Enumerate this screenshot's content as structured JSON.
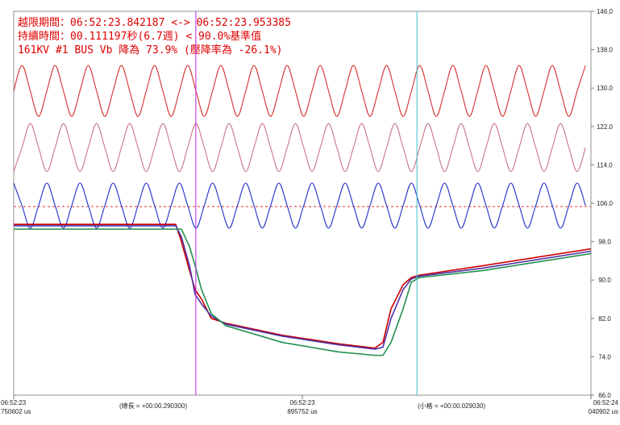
{
  "chart_data": {
    "type": "line",
    "annotations": [
      "越限期間：06:52:23.842187 <-> 06:52:23.953385",
      "持續時間：00.111197秒(6.7週) < 90.0%基準值",
      "161KV #1 BUS Vb 降為 73.9% (壓降率為 -26.1%)"
    ],
    "footer_labels": [
      "(總長 = +00:00.290300)",
      "(小格 = +00:00.029030)"
    ],
    "xlim": [
      750602,
      1040902
    ],
    "xticks": [
      {
        "value": 750602,
        "label": "06:52:23\n750602 us"
      },
      {
        "value": 895752,
        "label": "06:52:23\n895752 us"
      },
      {
        "value": 1040902,
        "label": "06:52:24\n040902 us"
      }
    ],
    "ylim": [
      66,
      146
    ],
    "yticks": [
      {
        "value": 146,
        "label": "146.0"
      },
      {
        "value": 138,
        "label": "138.0"
      },
      {
        "value": 130,
        "label": "130.0"
      },
      {
        "value": 122,
        "label": "122.0"
      },
      {
        "value": 114,
        "label": "114.0"
      },
      {
        "value": 106,
        "label": "106.0"
      },
      {
        "value": 98,
        "label": "98.0"
      },
      {
        "value": 90,
        "label": "90.0"
      },
      {
        "value": 82,
        "label": "82.0"
      },
      {
        "value": 74,
        "label": "74.0"
      },
      {
        "value": 66,
        "label": "66.0"
      }
    ],
    "cursors": [
      {
        "value": 842187,
        "color": "#c020e0"
      },
      {
        "value": 953385,
        "color": "#40c0d0"
      }
    ],
    "reference_line": {
      "value": 105.3,
      "color": "#e03030"
    },
    "x": [
      750602,
      754769,
      758936,
      763103,
      767270,
      771437,
      775604,
      779771,
      783938,
      788105,
      792272,
      796439,
      800606,
      804773,
      808940,
      813107,
      817274,
      821441,
      825608,
      829775,
      833942,
      838109,
      842276,
      846443,
      850610,
      854777,
      858944,
      863111,
      867278,
      871445,
      875612,
      879779,
      883946,
      888113,
      892280,
      896447,
      900614,
      904781,
      908948,
      913115,
      917282,
      921449,
      925616,
      929783,
      933950,
      938117,
      942284,
      946451,
      950618,
      954785,
      958952,
      963119,
      967286,
      971453,
      975620,
      979787,
      983954,
      988121,
      992288,
      996455,
      1000622,
      1004789,
      1008956,
      1013123,
      1017290,
      1021457,
      1025624,
      1029791,
      1033958,
      1038125
    ],
    "series": [
      {
        "color": "#d83030",
        "values": [
          129.4,
          134.7,
          129.4,
          124.1,
          129.4,
          134.7,
          129.4,
          124.1,
          129.4,
          134.7,
          129.4,
          124.1,
          129.4,
          134.7,
          129.4,
          124.1,
          129.4,
          134.7,
          129.4,
          124.1,
          129.4,
          134.7,
          129.4,
          124.1,
          129.4,
          134.7,
          129.4,
          124.1,
          129.4,
          134.7,
          129.4,
          124.1,
          129.4,
          134.7,
          129.4,
          124.1,
          129.4,
          134.7,
          129.4,
          124.1,
          129.4,
          134.7,
          129.4,
          124.1,
          129.4,
          134.7,
          129.4,
          124.1,
          129.4,
          134.7,
          129.4,
          124.1,
          129.4,
          134.7,
          129.4,
          124.1,
          129.4,
          134.7,
          129.4,
          124.1,
          129.4,
          134.7,
          129.4,
          124.1,
          129.4,
          134.7,
          129.4,
          124.1,
          129.4,
          134.7
        ]
      },
      {
        "color": "#c87888",
        "values": [
          112.6,
          117.6,
          122.6,
          117.6,
          112.6,
          117.6,
          122.6,
          117.6,
          112.6,
          117.6,
          122.6,
          117.6,
          112.6,
          117.6,
          122.6,
          117.6,
          112.6,
          117.6,
          122.6,
          117.6,
          112.6,
          117.6,
          122.6,
          117.6,
          112.6,
          117.6,
          122.6,
          117.6,
          112.6,
          117.6,
          122.6,
          117.6,
          112.6,
          117.6,
          122.6,
          117.6,
          112.6,
          117.6,
          122.6,
          117.6,
          112.6,
          117.6,
          122.6,
          117.6,
          112.6,
          117.6,
          122.6,
          117.6,
          112.6,
          117.6,
          122.6,
          117.6,
          112.6,
          117.6,
          122.6,
          117.6,
          112.6,
          117.6,
          122.6,
          117.6,
          112.6,
          117.6,
          122.6,
          117.6,
          112.6,
          117.6,
          122.6,
          117.6,
          112.6,
          117.6
        ]
      },
      {
        "color": "#2030c8",
        "values": [
          110.2,
          105.5,
          100.8,
          105.5,
          110.2,
          105.5,
          100.8,
          105.5,
          110.2,
          105.5,
          100.8,
          105.5,
          110.2,
          105.5,
          100.8,
          105.5,
          110.2,
          105.5,
          100.8,
          105.5,
          110.2,
          105.5,
          100.8,
          105.5,
          110.2,
          105.5,
          100.8,
          105.5,
          110.2,
          105.5,
          100.8,
          105.5,
          110.2,
          105.5,
          100.8,
          105.5,
          110.2,
          105.5,
          100.8,
          105.5,
          110.2,
          105.5,
          100.8,
          105.5,
          110.2,
          105.5,
          100.8,
          105.5,
          110.2,
          105.5,
          100.8,
          105.5,
          110.2,
          105.5,
          100.8,
          105.5,
          110.2,
          105.5,
          100.8,
          105.5,
          110.2,
          105.5,
          100.8,
          105.5,
          110.2,
          105.5,
          100.8,
          105.5,
          110.2,
          105.5
        ]
      },
      {
        "color": "#cc0000",
        "x": [
          750602,
          832097,
          834936,
          838990,
          841828,
          845072,
          849937,
          857235,
          885617,
          913998,
          932244,
          936298,
          940353,
          946435,
          950489,
          954544,
          986980,
          1040902
        ],
        "values": [
          101.6,
          101.6,
          98,
          92,
          88,
          86,
          82,
          81,
          78.5,
          76.7,
          75.8,
          77,
          84,
          89,
          90.5,
          91,
          93,
          96.5
        ]
      },
      {
        "color": "#5030a8",
        "x": [
          750602,
          832097,
          834936,
          838990,
          841828,
          845072,
          849937,
          857235,
          885617,
          913998,
          932244,
          936298,
          940353,
          946435,
          950489,
          954544,
          986980,
          1040902
        ],
        "values": [
          101.3,
          101.3,
          99,
          93,
          87,
          85,
          82.5,
          80.8,
          78.3,
          76.5,
          75.6,
          76,
          82,
          88,
          90.2,
          90.8,
          92.5,
          96
        ]
      },
      {
        "color": "#209050",
        "x": [
          750602,
          832097,
          834936,
          838990,
          841828,
          845072,
          849937,
          857235,
          885617,
          913998,
          932244,
          936298,
          940353,
          946435,
          950489,
          954544,
          986980,
          1040902
        ],
        "values": [
          100.6,
          100.6,
          100.6,
          97,
          93,
          88,
          83,
          80.5,
          77,
          75,
          74.3,
          74.3,
          77,
          84,
          89.5,
          90.5,
          92,
          95.5
        ]
      }
    ]
  }
}
